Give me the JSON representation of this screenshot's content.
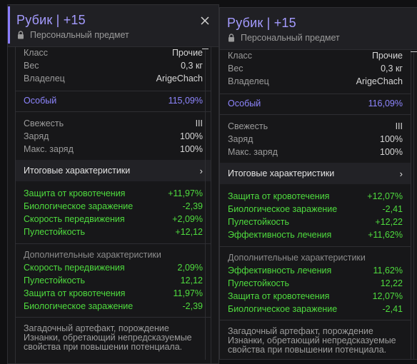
{
  "panels": [
    {
      "title": "Рубик | +15",
      "subtitle": "Персональный предмет",
      "base": [
        {
          "label": "Класс",
          "value": "Прочие"
        },
        {
          "label": "Вес",
          "value": "0,3 кг"
        },
        {
          "label": "Владелец",
          "value": "ArigeChach"
        }
      ],
      "quality": {
        "label": "Особый",
        "value": "115,09%"
      },
      "state": [
        {
          "label": "Свежесть",
          "value": "III"
        },
        {
          "label": "Заряд",
          "value": "100%"
        },
        {
          "label": "Макс. заряд",
          "value": "100%"
        }
      ],
      "totals_label": "Итоговые характеристики",
      "totals": [
        {
          "label": "Защита от кровотечения",
          "value": "+11,97%"
        },
        {
          "label": "Биологическое заражение",
          "value": "-2,39"
        },
        {
          "label": "Скорость передвижения",
          "value": "+2,09%"
        },
        {
          "label": "Пулестойкость",
          "value": "+12,12"
        }
      ],
      "extra_label": "Дополнительные характеристики",
      "extra": [
        {
          "label": "Скорость передвижения",
          "value": "2,09%"
        },
        {
          "label": "Пулестойкость",
          "value": "12,12"
        },
        {
          "label": "Защита от кровотечения",
          "value": "11,97%"
        },
        {
          "label": "Биологическое заражение",
          "value": "-2,39"
        }
      ],
      "description": [
        "Загадочный артефакт, порождение",
        "Изнанки, обретающий непредсказуемые",
        "свойства при повышении потенциала."
      ]
    },
    {
      "title": "Рубик | +15",
      "subtitle": "Персональный предмет",
      "base": [
        {
          "label": "Класс",
          "value": "Прочие"
        },
        {
          "label": "Вес",
          "value": "0,3 кг"
        },
        {
          "label": "Владелец",
          "value": "ArigeChach"
        }
      ],
      "quality": {
        "label": "Особый",
        "value": "116,09%"
      },
      "state": [
        {
          "label": "Свежесть",
          "value": "III"
        },
        {
          "label": "Заряд",
          "value": "100%"
        },
        {
          "label": "Макс. заряд",
          "value": "100%"
        }
      ],
      "totals_label": "Итоговые характеристики",
      "totals": [
        {
          "label": "Защита от кровотечения",
          "value": "+12,07%"
        },
        {
          "label": "Биологическое заражение",
          "value": "-2,41"
        },
        {
          "label": "Пулестойкость",
          "value": "+12,22"
        },
        {
          "label": "Эффективность лечения",
          "value": "+11,62%"
        }
      ],
      "extra_label": "Дополнительные характеристики",
      "extra": [
        {
          "label": "Эффективность лечения",
          "value": "11,62%"
        },
        {
          "label": "Пулестойкость",
          "value": "12,22"
        },
        {
          "label": "Защита от кровотечения",
          "value": "12,07%"
        },
        {
          "label": "Биологическое заражение",
          "value": "-2,41"
        }
      ],
      "description": [
        "Загадочный артефакт, порождение",
        "Изнанки, обретающий непредсказуемые",
        "свойства при повышении потенциала."
      ]
    }
  ],
  "colors": {
    "accent": "#8a7dff",
    "quality": "#8e86ff",
    "positive": "#4fdc3e"
  },
  "icons": {
    "lock": "lock-icon",
    "close": "close-icon",
    "chevron": "chevron-right-icon"
  }
}
